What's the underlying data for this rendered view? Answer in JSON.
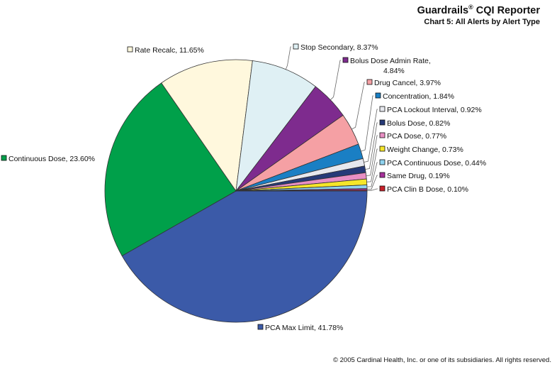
{
  "header": {
    "brand": "Guardrails",
    "brand_mark": "®",
    "brand_suffix": " CQI Reporter",
    "subtitle": "Chart 5:  All Alerts by Alert Type"
  },
  "footer": {
    "copyright": "© 2005 Cardinal Health, Inc. or one of its subsidiaries. All rights reserved."
  },
  "chart_data": {
    "type": "pie",
    "title": "Chart 5:  All Alerts by Alert Type",
    "legend": "none",
    "slices": [
      {
        "label": "PCA Max Limit",
        "text": "PCA Max Limit, 41.78%",
        "value": 41.78,
        "color": "#3b5aa8"
      },
      {
        "label": "Continuous Dose",
        "text": "Continuous Dose, 23.60%",
        "value": 23.6,
        "color": "#00a04a"
      },
      {
        "label": "Rate Recalc",
        "text": "Rate Recalc, 11.65%",
        "value": 11.65,
        "color": "#fff8dd"
      },
      {
        "label": "Stop Secondary",
        "text": "Stop Secondary, 8.37%",
        "value": 8.37,
        "color": "#dff0f4"
      },
      {
        "label": "Bolus Dose Admin Rate",
        "text": "Bolus Dose Admin Rate,",
        "text2": "4.84%",
        "value": 4.84,
        "color": "#7e2b8e"
      },
      {
        "label": "Drug Cancel",
        "text": "Drug Cancel, 3.97%",
        "value": 3.97,
        "color": "#f5a0a4"
      },
      {
        "label": "Concentration",
        "text": "Concentration, 1.84%",
        "value": 1.84,
        "color": "#1a7fc4"
      },
      {
        "label": "PCA Lockout Interval",
        "text": "PCA Lockout Interval, 0.92%",
        "value": 0.92,
        "color": "#e6e8ee"
      },
      {
        "label": "Bolus Dose",
        "text": "Bolus Dose, 0.82%",
        "value": 0.82,
        "color": "#263a78"
      },
      {
        "label": "PCA Dose",
        "text": "PCA Dose, 0.77%",
        "value": 0.77,
        "color": "#e88fc4"
      },
      {
        "label": "Weight Change",
        "text": "Weight Change, 0.73%",
        "value": 0.73,
        "color": "#f5e62a"
      },
      {
        "label": "PCA Continuous Dose",
        "text": "PCA Continuous Dose, 0.44%",
        "value": 0.44,
        "color": "#8fd3f0"
      },
      {
        "label": "Same Drug",
        "text": "Same Drug, 0.19%",
        "value": 0.19,
        "color": "#a6309a"
      },
      {
        "label": "PCA Clin B Dose",
        "text": "PCA Clin B Dose, 0.10%",
        "value": 0.1,
        "color": "#c8202a"
      }
    ]
  }
}
